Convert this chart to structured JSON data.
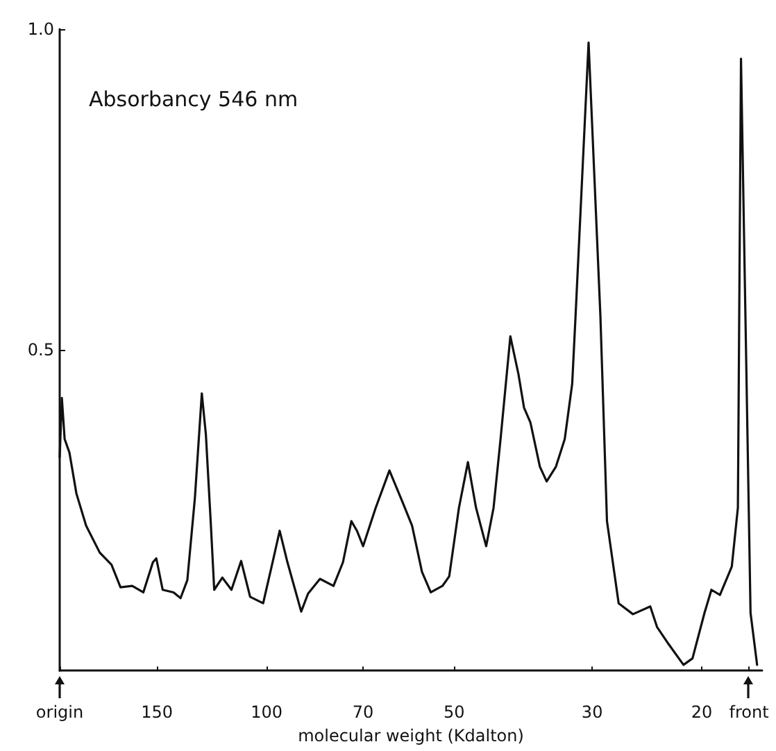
{
  "chart_data": {
    "type": "line",
    "xlabel": "molecular weight (Kdalton)",
    "annotations": [
      "Absorbancy 546 nm"
    ],
    "x": [
      215,
      213.3,
      211.1,
      207.4,
      202.1,
      195.0,
      185.4,
      177.5,
      171.7,
      164.4,
      157.8,
      152.3,
      150.4,
      146.9,
      141.1,
      137.5,
      134.1,
      130.4,
      127.1,
      125.2,
      123.0,
      121.4,
      117.8,
      113.9,
      109.9,
      106.3,
      101.3,
      97.5,
      95.3,
      92.6,
      88.0,
      85.8,
      82.1,
      78.1,
      75.4,
      73.1,
      71.6,
      70.0,
      66.8,
      63.5,
      60.4,
      58.4,
      56.3,
      54.5,
      52.2,
      50.9,
      49.1,
      47.5,
      46.1,
      44.4,
      43.2,
      42.1,
      40.6,
      39.4,
      38.6,
      37.7,
      36.4,
      35.5,
      34.3,
      33.2,
      32.3,
      31.9,
      30.4,
      29.1,
      28.4,
      27.2,
      25.8,
      24.2,
      23.6,
      22.6,
      21.4,
      20.7,
      19.8,
      19.3,
      18.7,
      17.9,
      17.5,
      17.3,
      16.7,
      16.3
    ],
    "series": [
      {
        "color": "#111111",
        "values": [
          0.333,
          0.425,
          0.361,
          0.34,
          0.276,
          0.226,
          0.184,
          0.165,
          0.13,
          0.132,
          0.122,
          0.169,
          0.175,
          0.126,
          0.122,
          0.113,
          0.141,
          0.269,
          0.432,
          0.368,
          0.233,
          0.126,
          0.145,
          0.126,
          0.171,
          0.115,
          0.105,
          0.175,
          0.218,
          0.169,
          0.092,
          0.12,
          0.143,
          0.132,
          0.169,
          0.233,
          0.218,
          0.194,
          0.254,
          0.312,
          0.261,
          0.226,
          0.154,
          0.122,
          0.132,
          0.147,
          0.254,
          0.325,
          0.254,
          0.194,
          0.254,
          0.361,
          0.521,
          0.462,
          0.41,
          0.387,
          0.318,
          0.295,
          0.318,
          0.361,
          0.447,
          0.553,
          0.979,
          0.553,
          0.233,
          0.105,
          0.088,
          0.1,
          0.068,
          0.041,
          0.009,
          0.019,
          0.09,
          0.126,
          0.118,
          0.162,
          0.254,
          0.954,
          0.09,
          0.009
        ]
      }
    ],
    "xlim": [
      215,
      16
    ],
    "xticks": [
      {
        "value": 215,
        "label": "origin"
      },
      150,
      100,
      70,
      50,
      30,
      20,
      {
        "value": 16.8,
        "label": "front"
      }
    ],
    "ylim": [
      0,
      1.0
    ],
    "yticks": [
      0.5,
      {
        "value": 1.0,
        "label": "1.0"
      }
    ],
    "log": "x",
    "marker": "none",
    "line_style": "solid"
  }
}
